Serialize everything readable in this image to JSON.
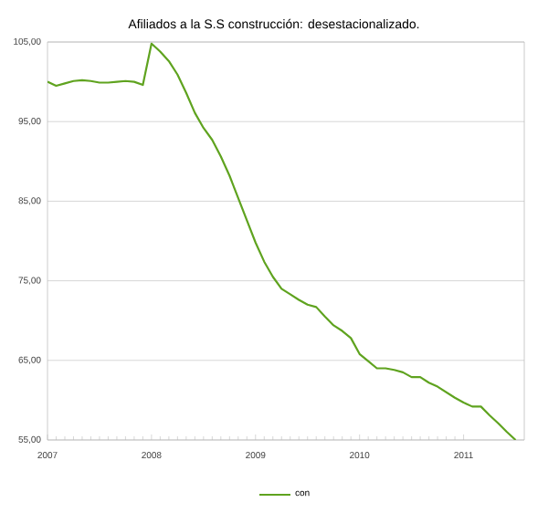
{
  "chart_data": {
    "type": "line",
    "title": "Afiliados a la S.S construcción: desestacionalizado.",
    "x": [
      "2007-01",
      "2007-02",
      "2007-03",
      "2007-04",
      "2007-05",
      "2007-06",
      "2007-07",
      "2007-08",
      "2007-09",
      "2007-10",
      "2007-11",
      "2007-12",
      "2008-01",
      "2008-02",
      "2008-03",
      "2008-04",
      "2008-05",
      "2008-06",
      "2008-07",
      "2008-08",
      "2008-09",
      "2008-10",
      "2008-11",
      "2008-12",
      "2009-01",
      "2009-02",
      "2009-03",
      "2009-04",
      "2009-05",
      "2009-06",
      "2009-07",
      "2009-08",
      "2009-09",
      "2009-10",
      "2009-11",
      "2009-12",
      "2010-01",
      "2010-02",
      "2010-03",
      "2010-04",
      "2010-05",
      "2010-06",
      "2010-07",
      "2010-08",
      "2010-09",
      "2010-10",
      "2010-11",
      "2010-12",
      "2011-01",
      "2011-02",
      "2011-03",
      "2011-04",
      "2011-05",
      "2011-06",
      "2011-07"
    ],
    "series": [
      {
        "name": "con",
        "color": "#5fa31f",
        "values": [
          100.0,
          99.5,
          99.8,
          100.1,
          100.2,
          100.1,
          99.9,
          99.9,
          100.0,
          100.1,
          100.0,
          99.6,
          104.8,
          103.8,
          102.6,
          100.9,
          98.6,
          96.1,
          94.2,
          92.7,
          90.6,
          88.2,
          85.4,
          82.6,
          79.8,
          77.4,
          75.5,
          74.0,
          73.3,
          72.6,
          72.0,
          71.7,
          70.5,
          69.4,
          68.7,
          67.8,
          65.8,
          64.9,
          64.0,
          64.0,
          63.8,
          63.5,
          62.9,
          62.9,
          62.2,
          61.7,
          61.0,
          60.3,
          59.7,
          59.2,
          59.2,
          58.1,
          57.1,
          56.0,
          55.0
        ]
      }
    ],
    "xlim": [
      "2007-01",
      "2011-08"
    ],
    "xticks": [
      "2007",
      "2008",
      "2009",
      "2010",
      "2011"
    ],
    "ylim": [
      55,
      105
    ],
    "yticks": [
      {
        "value": 55,
        "label": "55,00"
      },
      {
        "value": 65,
        "label": "65,00"
      },
      {
        "value": 75,
        "label": "75,00"
      },
      {
        "value": 85,
        "label": "85,00"
      },
      {
        "value": 95,
        "label": "95,00"
      },
      {
        "value": 105,
        "label": "105,00"
      }
    ],
    "grid": "y",
    "legend": "bottom"
  }
}
